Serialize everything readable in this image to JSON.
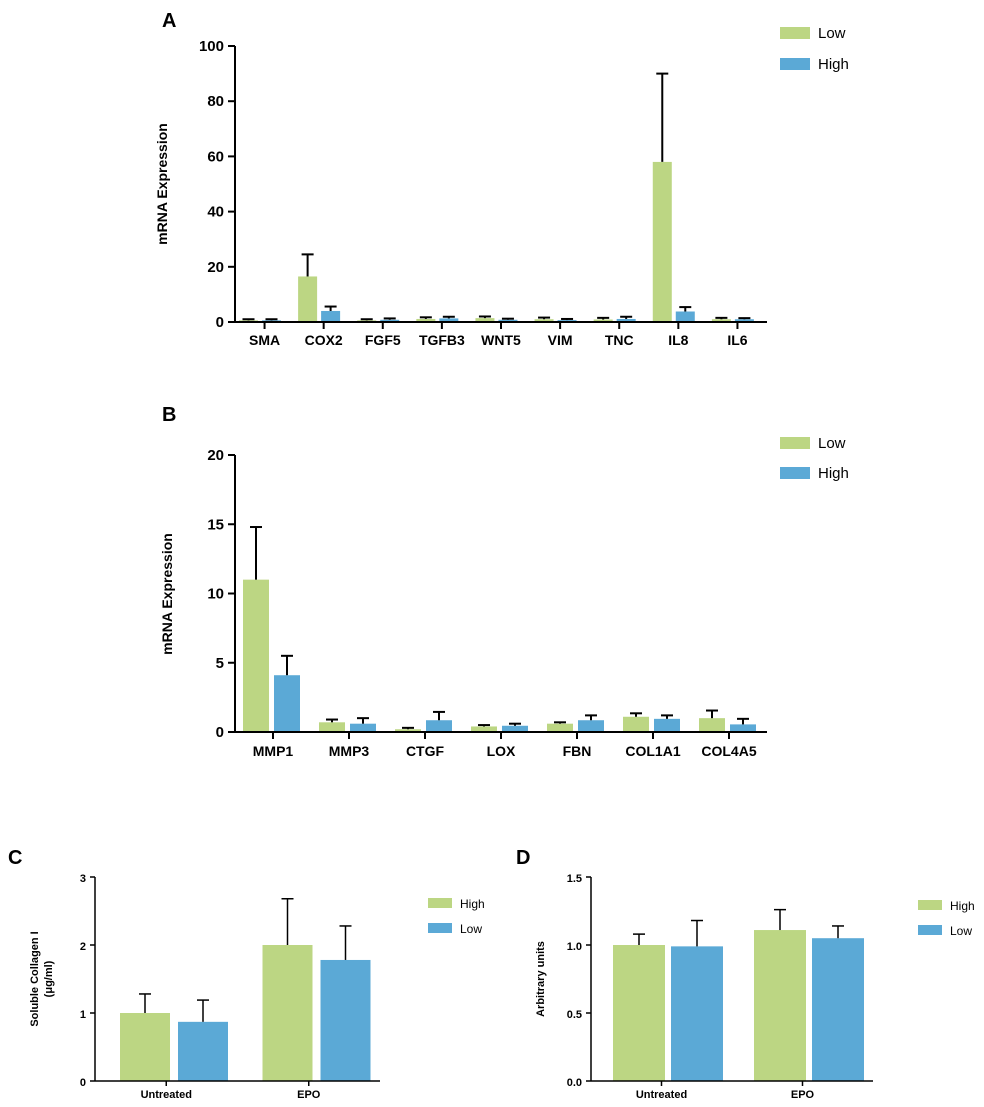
{
  "colors": {
    "green": "#bcd683",
    "blue": "#5ba9d6",
    "axis": "#000000",
    "errorbar": "#000000"
  },
  "chart_data": [
    {
      "type": "bar",
      "panel": "A",
      "ylabel": "mRNA Expression",
      "xlabel": "",
      "ylim": [
        0,
        100
      ],
      "yticks": [
        "0",
        "20",
        "40",
        "60",
        "80",
        "100"
      ],
      "categories": [
        "SMA",
        "COX2",
        "FGF5",
        "TGFB3",
        "WNT5",
        "VIM",
        "TNC",
        "IL8",
        "IL6"
      ],
      "legend_position": "top-right",
      "series": [
        {
          "name": "Low",
          "color": "green",
          "values": [
            0.6,
            16.5,
            0.6,
            1.1,
            1.4,
            1.0,
            0.9,
            58.0,
            1.0
          ],
          "errors": [
            0.4,
            8.0,
            0.4,
            0.6,
            0.6,
            0.6,
            0.6,
            32.0,
            0.5
          ]
        },
        {
          "name": "High",
          "color": "blue",
          "values": [
            0.6,
            4.0,
            0.8,
            1.3,
            0.8,
            0.7,
            1.1,
            3.8,
            1.0
          ],
          "errors": [
            0.4,
            1.6,
            0.5,
            0.6,
            0.4,
            0.4,
            0.8,
            1.6,
            0.4
          ]
        }
      ]
    },
    {
      "type": "bar",
      "panel": "B",
      "ylabel": "mRNA Expression",
      "xlabel": "",
      "ylim": [
        0,
        20
      ],
      "yticks": [
        "0",
        "5",
        "10",
        "15",
        "20"
      ],
      "categories": [
        "MMP1",
        "MMP3",
        "CTGF",
        "LOX",
        "FBN",
        "COL1A1",
        "COL4A5"
      ],
      "legend_position": "top-right",
      "series": [
        {
          "name": "Low",
          "color": "green",
          "values": [
            11.0,
            0.7,
            0.2,
            0.4,
            0.6,
            1.1,
            1.0
          ],
          "errors": [
            3.8,
            0.2,
            0.1,
            0.1,
            0.1,
            0.25,
            0.55
          ]
        },
        {
          "name": "High",
          "color": "blue",
          "values": [
            4.1,
            0.6,
            0.85,
            0.45,
            0.85,
            0.95,
            0.55
          ],
          "errors": [
            1.4,
            0.4,
            0.6,
            0.15,
            0.35,
            0.25,
            0.4
          ]
        }
      ]
    },
    {
      "type": "bar",
      "panel": "C",
      "ylabel": "Soluble Collagen I",
      "ylabel2": "(μg/ml)",
      "xlabel": "",
      "ylim": [
        0,
        3
      ],
      "yticks": [
        "0",
        "1",
        "2",
        "3"
      ],
      "categories": [
        "Untreated",
        "EPO"
      ],
      "legend_position": "right",
      "series": [
        {
          "name": "High",
          "color": "green",
          "values": [
            1.0,
            2.0
          ],
          "errors": [
            0.28,
            0.68
          ]
        },
        {
          "name": "Low",
          "color": "blue",
          "values": [
            0.87,
            1.78
          ],
          "errors": [
            0.32,
            0.5
          ]
        }
      ]
    },
    {
      "type": "bar",
      "panel": "D",
      "ylabel": "Arbitrary units",
      "xlabel": "",
      "ylim": [
        0,
        1.5
      ],
      "yticks": [
        "0.0",
        "0.5",
        "1.0",
        "1.5"
      ],
      "categories": [
        "Untreated",
        "EPO"
      ],
      "legend_position": "right",
      "series": [
        {
          "name": "High",
          "color": "green",
          "values": [
            1.0,
            1.11
          ],
          "errors": [
            0.08,
            0.15
          ]
        },
        {
          "name": "Low",
          "color": "blue",
          "values": [
            0.99,
            1.05
          ],
          "errors": [
            0.19,
            0.09
          ]
        }
      ]
    }
  ]
}
